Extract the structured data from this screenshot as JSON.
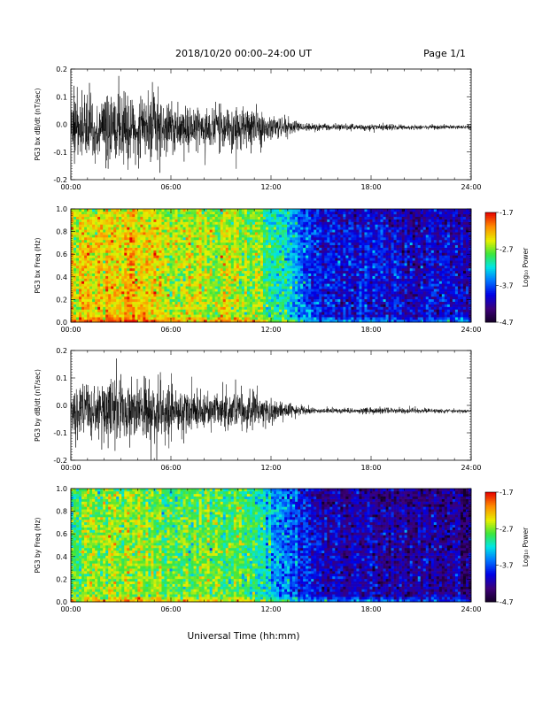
{
  "header": {
    "title": "2018/10/20   00:00–24:00 UT",
    "page": "Page 1/1"
  },
  "x_axis": {
    "title": "Universal Time (hh:mm)",
    "tick_labels": [
      "00:00",
      "06:00",
      "12:00",
      "18:00",
      "24:00"
    ],
    "range_hours": [
      0,
      24
    ]
  },
  "colorbar": {
    "label": "Log₁₀ Power",
    "tick_labels": [
      "-1.7",
      "-2.7",
      "-3.7",
      "-4.7"
    ],
    "range": [
      -4.7,
      -1.7
    ]
  },
  "chart_data": [
    {
      "type": "line",
      "ylabel": "PG3 bx dB/dt (nT/sec)",
      "ylim": [
        -0.2,
        0.2
      ],
      "yticks": [
        "0.2",
        "0.1",
        "0.0",
        "-0.1",
        "-0.2"
      ],
      "x_hours": [
        0,
        2,
        4,
        6,
        8,
        10,
        11,
        12,
        13,
        14,
        15,
        16,
        18,
        20,
        22,
        24
      ],
      "envelope_amplitude": [
        0.12,
        0.13,
        0.14,
        0.11,
        0.09,
        0.08,
        0.08,
        0.05,
        0.03,
        0.018,
        0.012,
        0.012,
        0.012,
        0.01,
        0.008,
        0.008
      ],
      "baseline": -0.01
    },
    {
      "type": "heatmap",
      "ylabel": "PG3 bx Freq (Hz)",
      "ylim": [
        0,
        1.0
      ],
      "yticks": [
        "1.0",
        "0.8",
        "0.6",
        "0.4",
        "0.2",
        "0.0"
      ],
      "x_hours": [
        0,
        2,
        4,
        6,
        8,
        10,
        11,
        12,
        13,
        14,
        15,
        16,
        18,
        20,
        22,
        24
      ],
      "mean_log_power": [
        -2.5,
        -2.35,
        -2.3,
        -2.6,
        -2.55,
        -2.65,
        -2.7,
        -3.0,
        -3.3,
        -3.7,
        -3.95,
        -4.0,
        -4.0,
        -4.05,
        -4.05,
        -4.1
      ],
      "colorbar_range": [
        -4.7,
        -1.7
      ]
    },
    {
      "type": "line",
      "ylabel": "PG3 by dB/dt (nT/sec)",
      "ylim": [
        -0.2,
        0.2
      ],
      "yticks": [
        "0.2",
        "0.1",
        "0.0",
        "-0.1",
        "-0.2"
      ],
      "x_hours": [
        0,
        2,
        4,
        6,
        8,
        10,
        11,
        12,
        13,
        14,
        15,
        16,
        18,
        20,
        22,
        24
      ],
      "envelope_amplitude": [
        0.1,
        0.12,
        0.13,
        0.1,
        0.08,
        0.07,
        0.07,
        0.045,
        0.03,
        0.015,
        0.01,
        0.01,
        0.012,
        0.01,
        0.008,
        0.007
      ],
      "baseline": -0.02
    },
    {
      "type": "heatmap",
      "ylabel": "PG3 by Freq (Hz)",
      "ylim": [
        0,
        1.0
      ],
      "yticks": [
        "1.0",
        "0.8",
        "0.6",
        "0.4",
        "0.2",
        "0.0"
      ],
      "x_hours": [
        0,
        2,
        4,
        6,
        8,
        10,
        11,
        12,
        13,
        14,
        15,
        16,
        18,
        20,
        22,
        24
      ],
      "mean_log_power": [
        -2.85,
        -2.7,
        -2.6,
        -2.85,
        -2.8,
        -2.9,
        -3.0,
        -3.25,
        -3.5,
        -3.85,
        -4.1,
        -4.15,
        -4.1,
        -4.2,
        -4.25,
        -4.35
      ],
      "colorbar_range": [
        -4.7,
        -1.7
      ]
    }
  ]
}
